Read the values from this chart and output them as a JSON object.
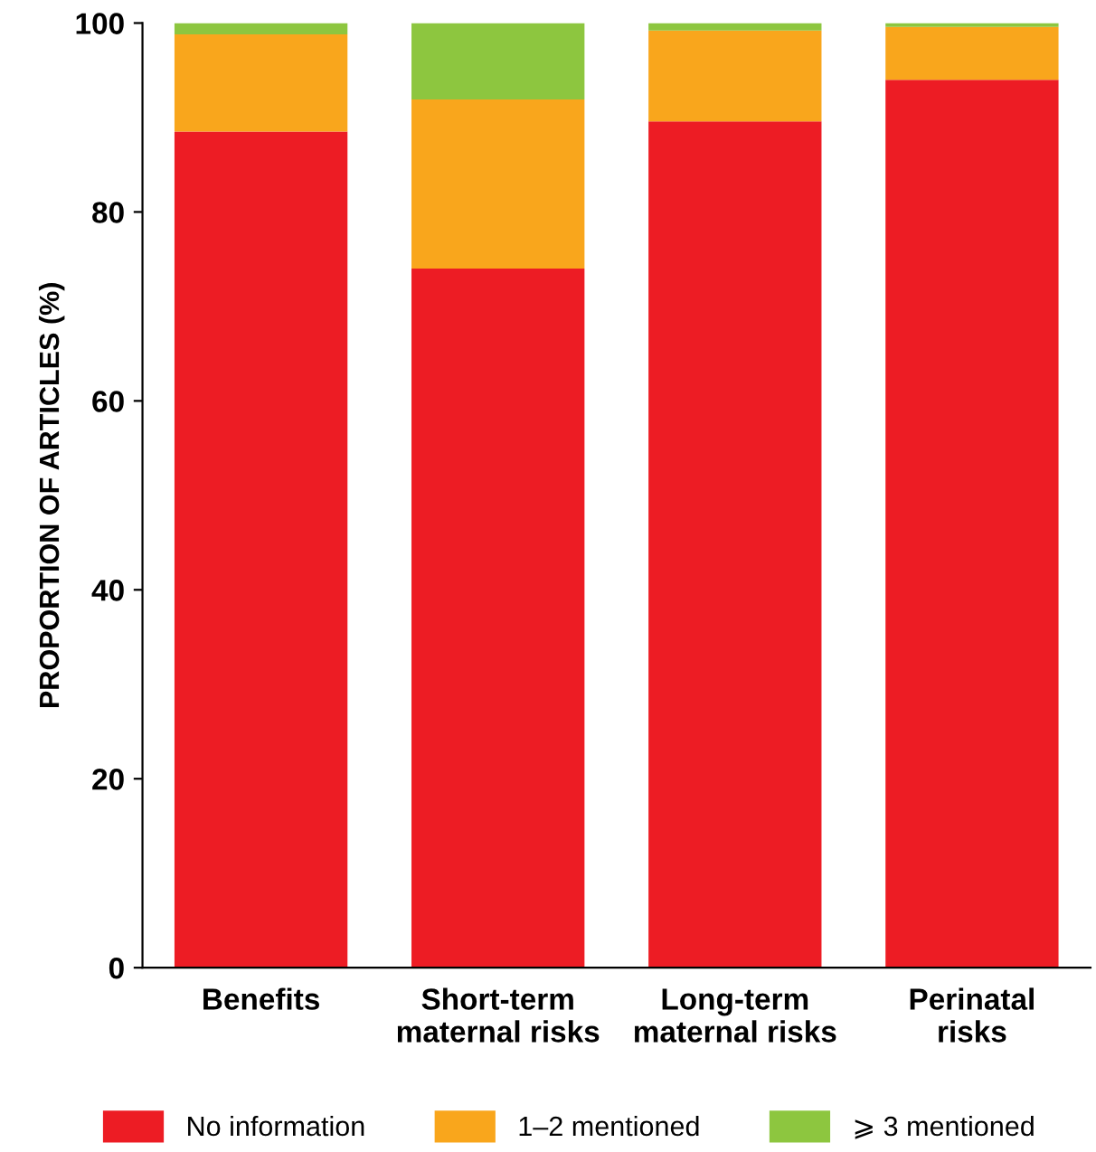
{
  "chart_data": {
    "type": "bar",
    "stacked": true,
    "ylabel": "PROPORTION OF ARTICLES (%)",
    "categories": [
      "Benefits",
      "Short-term\nmaternal risks",
      "Long-term\nmaternal risks",
      "Perinatal\nrisks"
    ],
    "series": [
      {
        "name": "No information",
        "color": "#ed1c24",
        "values": [
          88.5,
          74.0,
          89.6,
          94.0
        ]
      },
      {
        "name": "1–2 mentioned",
        "color": "#f9a61c",
        "values": [
          10.3,
          17.9,
          9.6,
          5.6
        ]
      },
      {
        "name": "⩾ 3 mentioned",
        "color": "#8dc63f",
        "values": [
          1.2,
          8.1,
          0.8,
          0.4
        ]
      }
    ],
    "ylim": [
      0,
      100
    ],
    "yticks": [
      0,
      20,
      40,
      60,
      80,
      100
    ],
    "grid": false,
    "legend": "bottom"
  }
}
